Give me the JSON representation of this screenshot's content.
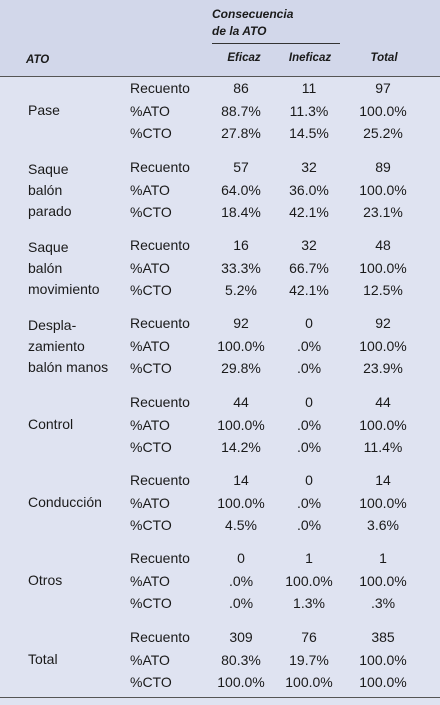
{
  "header": {
    "group_line1": "Consecuencia",
    "group_line2": "de la ATO",
    "col_ato": "ATO",
    "col_eficaz": "Eficaz",
    "col_ineficaz": "Ineficaz",
    "col_total": "Total"
  },
  "groups": [
    {
      "label": [
        "Pase"
      ],
      "rows": [
        {
          "stat": "Recuento",
          "eficaz": "86",
          "ineficaz": "11",
          "total": "97"
        },
        {
          "stat": "%ATO",
          "eficaz": "88.7%",
          "ineficaz": "11.3%",
          "total": "100.0%"
        },
        {
          "stat": "%CTO",
          "eficaz": "27.8%",
          "ineficaz": "14.5%",
          "total": "25.2%"
        }
      ]
    },
    {
      "label": [
        "Saque",
        "balón",
        "parado"
      ],
      "rows": [
        {
          "stat": "Recuento",
          "eficaz": "57",
          "ineficaz": "32",
          "total": "89"
        },
        {
          "stat": "%ATO",
          "eficaz": "64.0%",
          "ineficaz": "36.0%",
          "total": "100.0%"
        },
        {
          "stat": "%CTO",
          "eficaz": "18.4%",
          "ineficaz": "42.1%",
          "total": "23.1%"
        }
      ]
    },
    {
      "label": [
        "Saque",
        "balón",
        "movimiento"
      ],
      "rows": [
        {
          "stat": "Recuento",
          "eficaz": "16",
          "ineficaz": "32",
          "total": "48"
        },
        {
          "stat": "%ATO",
          "eficaz": "33.3%",
          "ineficaz": "66.7%",
          "total": "100.0%"
        },
        {
          "stat": "%CTO",
          "eficaz": "5.2%",
          "ineficaz": "42.1%",
          "total": "12.5%"
        }
      ]
    },
    {
      "label": [
        "Despla-",
        "zamiento",
        "balón manos"
      ],
      "rows": [
        {
          "stat": "Recuento",
          "eficaz": "92",
          "ineficaz": "0",
          "total": "92"
        },
        {
          "stat": "%ATO",
          "eficaz": "100.0%",
          "ineficaz": ".0%",
          "total": "100.0%"
        },
        {
          "stat": "%CTO",
          "eficaz": "29.8%",
          "ineficaz": ".0%",
          "total": "23.9%"
        }
      ]
    },
    {
      "label": [
        "Control"
      ],
      "rows": [
        {
          "stat": "Recuento",
          "eficaz": "44",
          "ineficaz": "0",
          "total": "44"
        },
        {
          "stat": "%ATO",
          "eficaz": "100.0%",
          "ineficaz": ".0%",
          "total": "100.0%"
        },
        {
          "stat": "%CTO",
          "eficaz": "14.2%",
          "ineficaz": ".0%",
          "total": "11.4%"
        }
      ]
    },
    {
      "label": [
        "Conducción"
      ],
      "rows": [
        {
          "stat": "Recuento",
          "eficaz": "14",
          "ineficaz": "0",
          "total": "14"
        },
        {
          "stat": "%ATO",
          "eficaz": "100.0%",
          "ineficaz": ".0%",
          "total": "100.0%"
        },
        {
          "stat": "%CTO",
          "eficaz": "4.5%",
          "ineficaz": ".0%",
          "total": "3.6%"
        }
      ]
    },
    {
      "label": [
        "Otros"
      ],
      "rows": [
        {
          "stat": "Recuento",
          "eficaz": "0",
          "ineficaz": "1",
          "total": "1"
        },
        {
          "stat": "%ATO",
          "eficaz": ".0%",
          "ineficaz": "100.0%",
          "total": "100.0%"
        },
        {
          "stat": "%CTO",
          "eficaz": ".0%",
          "ineficaz": "1.3%",
          "total": ".3%"
        }
      ]
    },
    {
      "label": [
        "Total"
      ],
      "rows": [
        {
          "stat": "Recuento",
          "eficaz": "309",
          "ineficaz": "76",
          "total": "385"
        },
        {
          "stat": "%ATO",
          "eficaz": "80.3%",
          "ineficaz": "19.7%",
          "total": "100.0%"
        },
        {
          "stat": "%CTO",
          "eficaz": "100.0%",
          "ineficaz": "100.0%",
          "total": "100.0%"
        }
      ]
    }
  ]
}
